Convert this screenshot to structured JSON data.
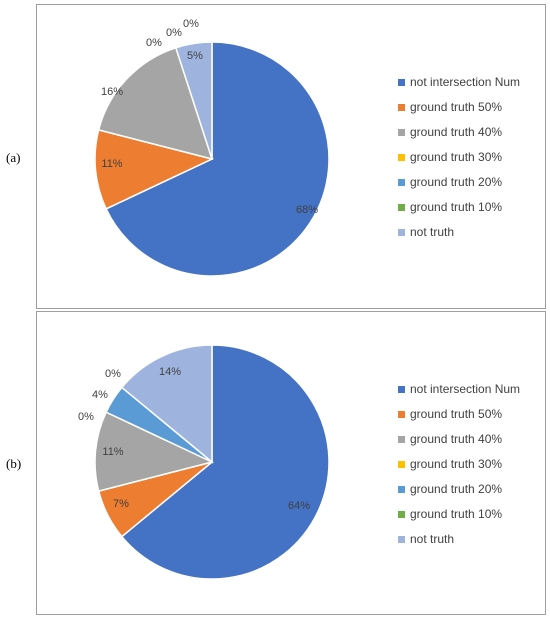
{
  "panels": [
    {
      "label": "(a)",
      "chart_data": {
        "type": "pie",
        "title": "",
        "categories": [
          "not intersection Num",
          "ground truth 50%",
          "ground truth 40%",
          "ground truth 30%",
          "ground truth 20%",
          "ground truth 10%",
          "not truth"
        ],
        "values": [
          68,
          11,
          16,
          0,
          0,
          0,
          5
        ],
        "data_labels": [
          "68%",
          "11%",
          "16%",
          "0%",
          "0%",
          "0%",
          "5%"
        ],
        "colors": [
          "#4472c4",
          "#ed7d31",
          "#a5a5a5",
          "#ffc000",
          "#5b9bd5",
          "#70ad47",
          "#9eb4df"
        ],
        "legend_position": "right",
        "start_angle": "12 o'clock",
        "direction": "clockwise"
      }
    },
    {
      "label": "(b)",
      "chart_data": {
        "type": "pie",
        "title": "",
        "categories": [
          "not intersection Num",
          "ground truth 50%",
          "ground truth 40%",
          "ground truth 30%",
          "ground truth 20%",
          "ground truth 10%",
          "not truth"
        ],
        "values": [
          64,
          7,
          11,
          0,
          4,
          0,
          14
        ],
        "data_labels": [
          "64%",
          "7%",
          "11%",
          "0%",
          "4%",
          "0%",
          "14%"
        ],
        "colors": [
          "#4472c4",
          "#ed7d31",
          "#a5a5a5",
          "#ffc000",
          "#5b9bd5",
          "#70ad47",
          "#9eb4df"
        ],
        "legend_position": "right",
        "start_angle": "12 o'clock",
        "direction": "clockwise"
      }
    }
  ]
}
